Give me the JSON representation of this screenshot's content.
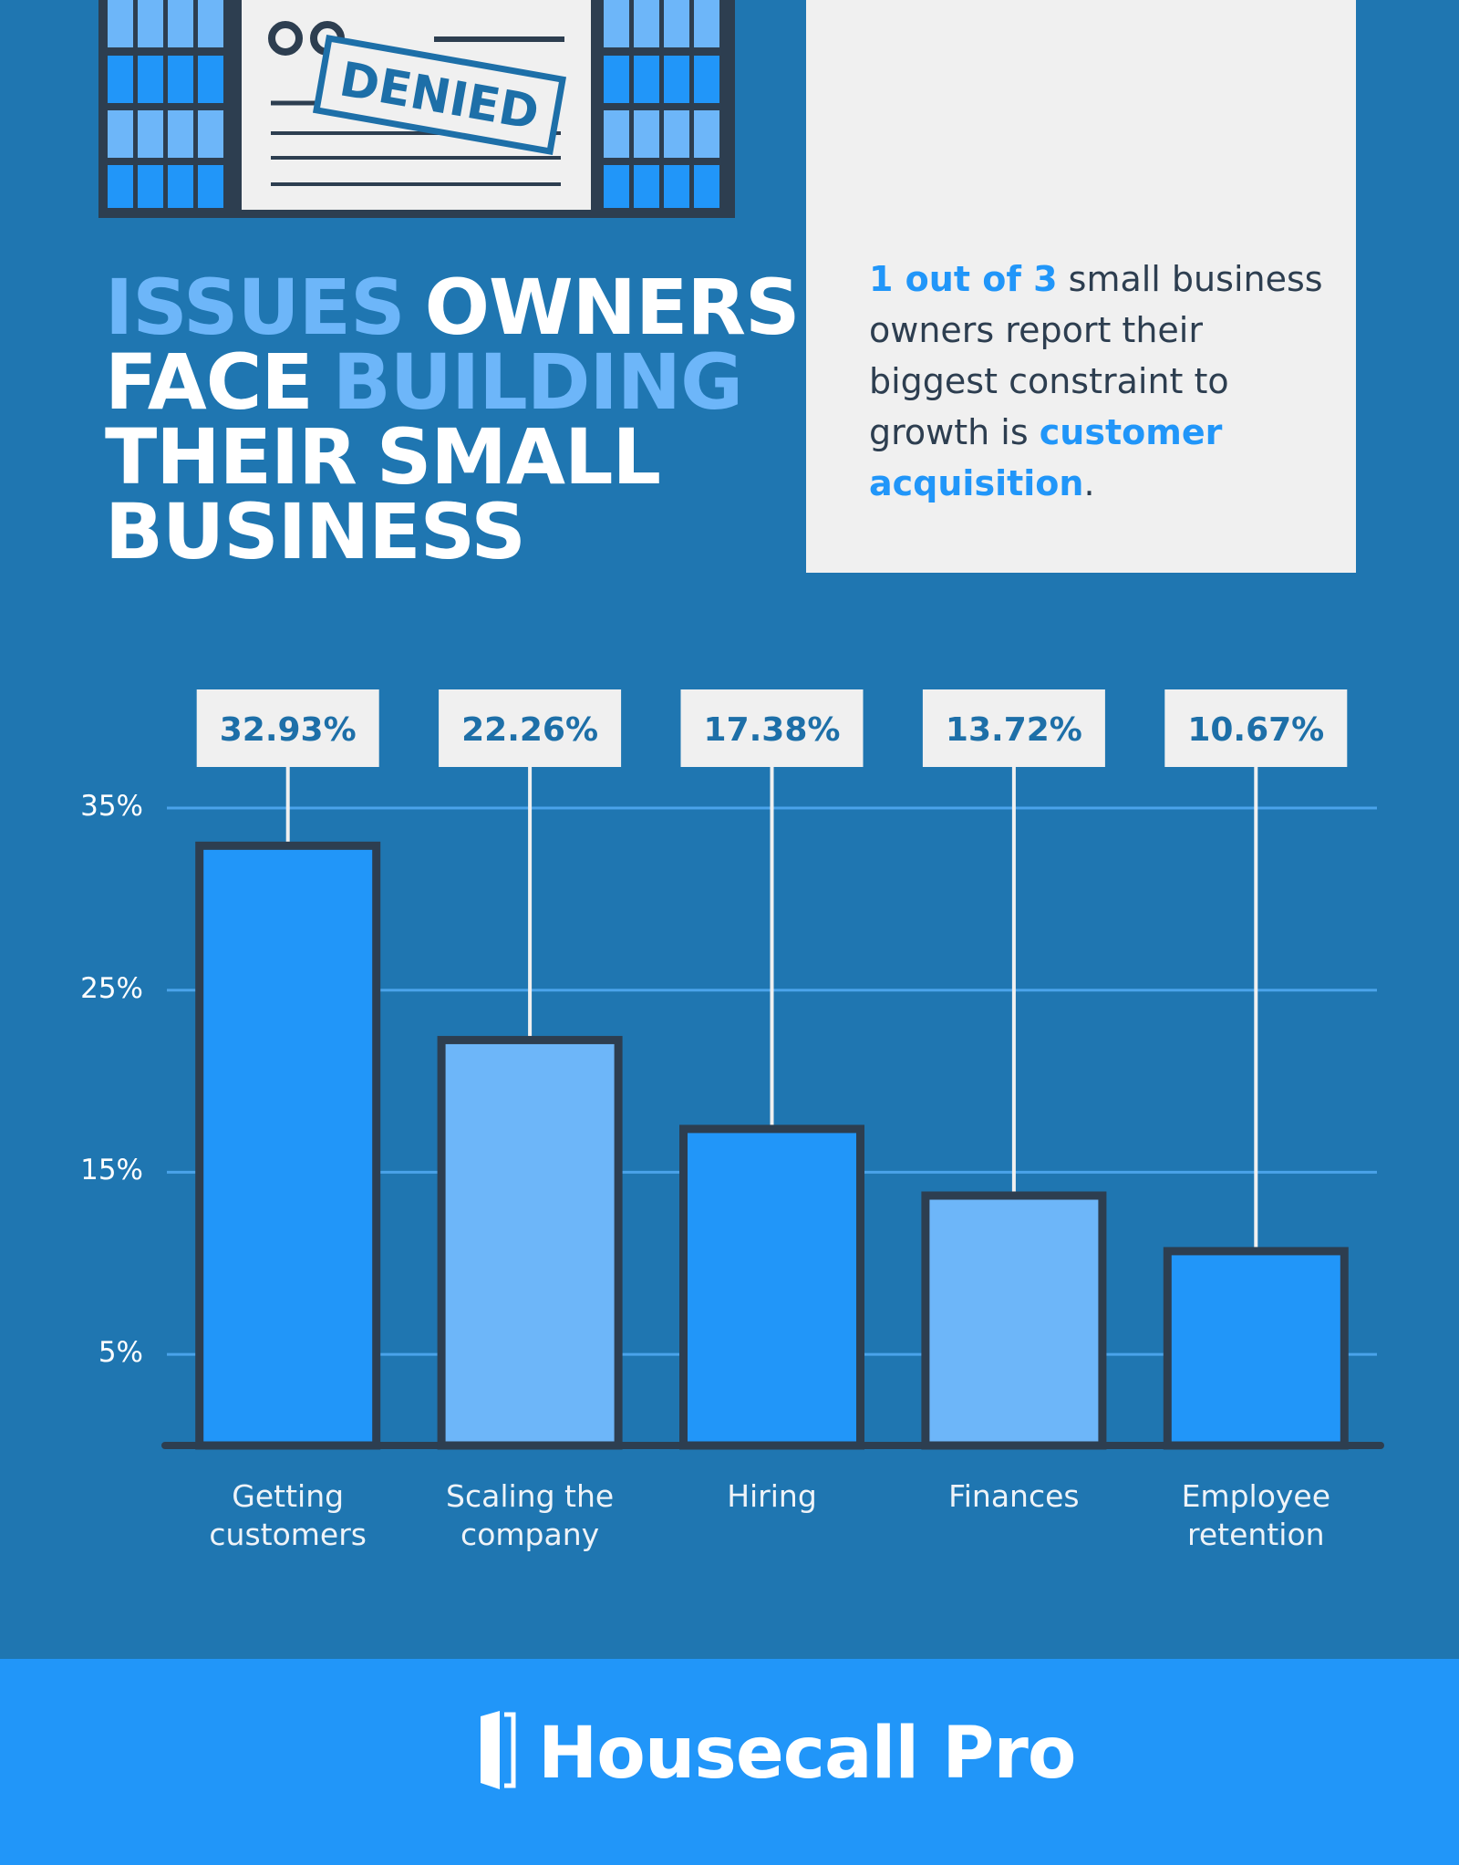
{
  "header": {
    "title_lines": [
      [
        {
          "text": "ISSUES",
          "highlight": true
        },
        {
          "text": "OWNERS",
          "highlight": false
        }
      ],
      [
        {
          "text": "FACE",
          "highlight": false
        },
        {
          "text": "BUILDING",
          "highlight": true
        }
      ],
      [
        {
          "text": "THEIR",
          "highlight": false
        },
        {
          "text": "SMALL",
          "highlight": false
        }
      ],
      [
        {
          "text": "BUSINESS",
          "highlight": false
        }
      ]
    ]
  },
  "illustration": {
    "stamp": "DENIED"
  },
  "callout": {
    "parts": [
      {
        "text": "1 out of 3",
        "emphasis": true
      },
      {
        "text": "small business owners report their biggest constraint to growth is",
        "emphasis": false
      },
      {
        "text": "customer acquisition",
        "emphasis": true
      },
      {
        "text": ".",
        "emphasis": false
      }
    ]
  },
  "chart_data": {
    "type": "bar",
    "categories": [
      "Getting customers",
      "Scaling the company",
      "Hiring",
      "Finances",
      "Employee retention"
    ],
    "values": [
      32.93,
      22.26,
      17.38,
      13.72,
      10.67
    ],
    "value_labels": [
      "32.93%",
      "22.26%",
      "17.38%",
      "13.72%",
      "10.67%"
    ],
    "colors": [
      "#2196f9",
      "#6db6f9",
      "#2196f9",
      "#6db6f9",
      "#2196f9"
    ],
    "ylim": [
      0,
      35
    ],
    "yticks": [
      {
        "value": 5,
        "label": "5%"
      },
      {
        "value": 15,
        "label": "15%"
      },
      {
        "value": 25,
        "label": "25%"
      },
      {
        "value": 35,
        "label": "35%"
      }
    ],
    "grid": true
  },
  "footer": {
    "brand": "Housecall Pro"
  }
}
